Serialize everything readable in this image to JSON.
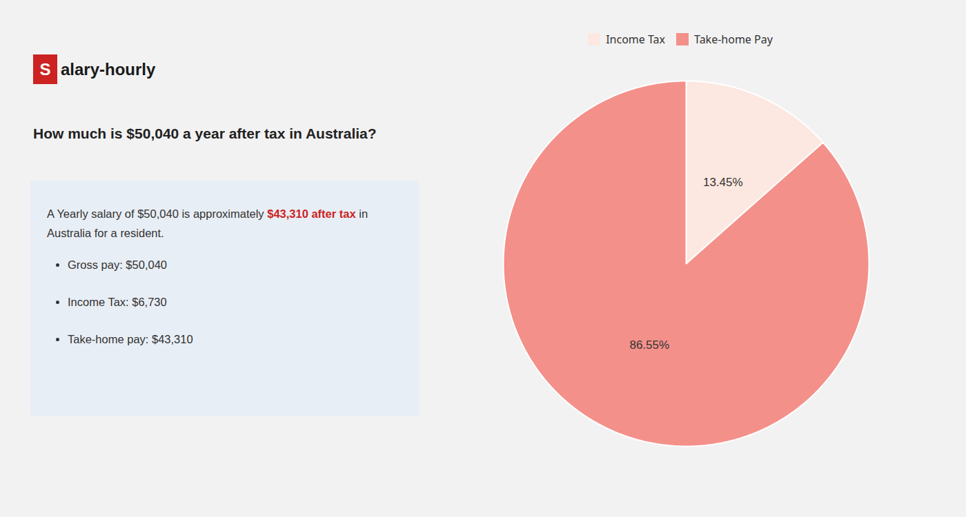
{
  "chart_data": {
    "type": "pie",
    "title": "How much is $50,040 a year after tax in Australia?",
    "categories": [
      "Income Tax",
      "Take-home Pay"
    ],
    "values": [
      13.45,
      86.55
    ],
    "value_labels": [
      "13.45%",
      "86.55%"
    ],
    "colors": [
      "#fce8e0",
      "#f4908a"
    ],
    "data_labels": true,
    "legend": "top",
    "annotations": [
      [
        {
          "text": "S",
          "color": "#cc2222"
        },
        {
          "text": "alary-hourly"
        }
      ],
      [
        [
          {
            "text": "A Yearly salary of $50,040 is approximately "
          },
          {
            "text": "$43,310 after tax",
            "color": "#cc2222"
          },
          {
            "text": " in"
          }
        ],
        [
          {
            "text": "Australia for a resident."
          }
        ]
      ],
      [
        "Gross pay: $50,040",
        "Income Tax: $6,730",
        "Take-home pay: $43,310"
      ]
    ]
  }
}
